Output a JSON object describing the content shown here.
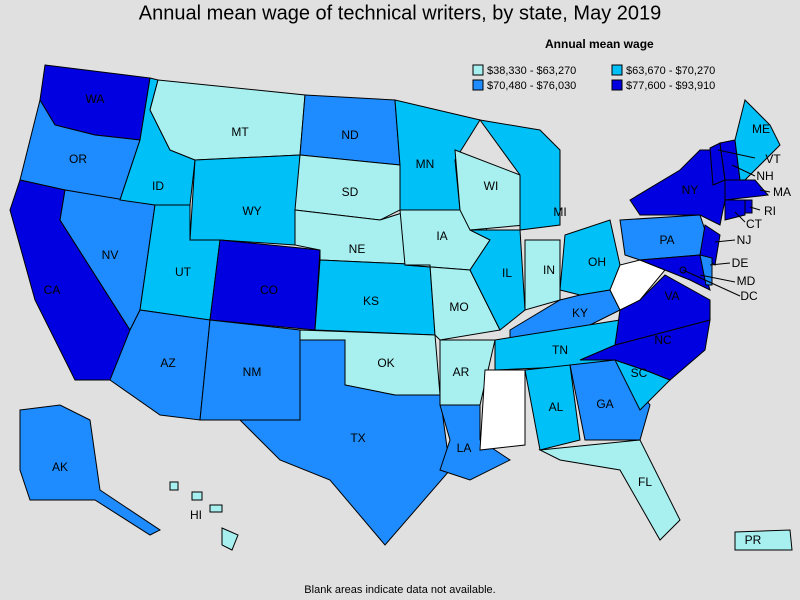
{
  "title": "Annual mean wage of technical writers, by state, May 2019",
  "legend": {
    "title": "Annual mean wage",
    "items": [
      {
        "label": "$38,330 - $63,270",
        "color": "#a8f0f0",
        "states": [
          "MT",
          "SD",
          "NE",
          "IA",
          "WI",
          "IN",
          "MO",
          "OK",
          "AR",
          "FL",
          "HI",
          "PR"
        ]
      },
      {
        "label": "$63,670 - $70,270",
        "color": "#00c0f8",
        "states": [
          "ID",
          "WY",
          "UT",
          "KS",
          "MN",
          "IL",
          "MI",
          "OH",
          "TN",
          "AL",
          "SC",
          "ME"
        ]
      },
      {
        "label": "$70,480 - $76,030",
        "color": "#1e8cff",
        "states": [
          "OR",
          "NV",
          "AZ",
          "NM",
          "TX",
          "ND",
          "LA",
          "KY",
          "GA",
          "PA",
          "AK",
          "DE"
        ]
      },
      {
        "label": "$77,600 - $93,910",
        "color": "#0000e0",
        "states": [
          "WA",
          "CA",
          "CO",
          "NY",
          "VA",
          "NC",
          "MD",
          "NJ",
          "MA",
          "CT",
          "NH",
          "VT",
          "RI",
          "DC"
        ]
      }
    ]
  },
  "footnote": "Blank areas indicate data not available."
}
